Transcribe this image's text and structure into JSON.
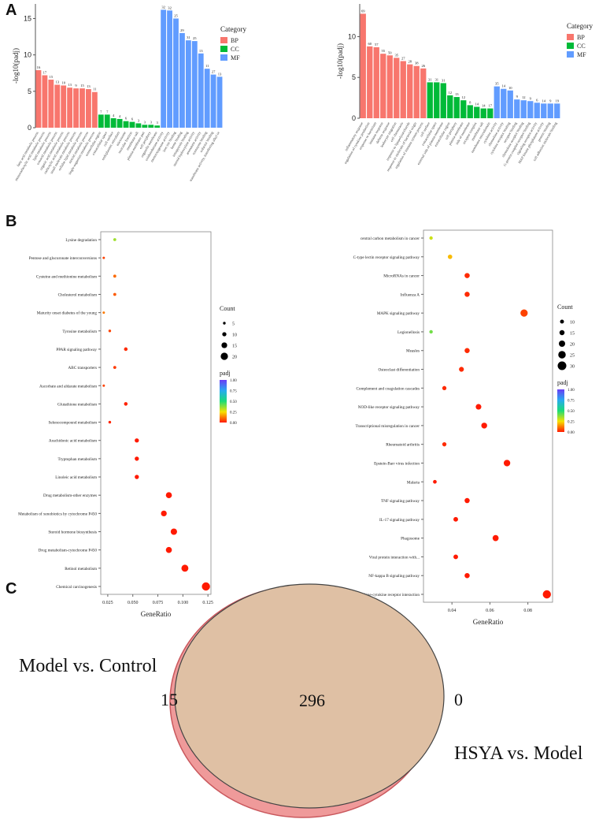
{
  "panels": {
    "a": "A",
    "b": "B",
    "c": "C"
  },
  "colors": {
    "bp": "#f8766d",
    "cc": "#00ba38",
    "mf": "#619cff",
    "venn_left_fill": "#ef9a9a",
    "venn_left_edge": "#c9585d",
    "venn_right_fill": "#dfc0a4",
    "venn_right_edge": "#444444",
    "dot_low": "#ff1a00",
    "dot_mid": "#f7e200",
    "dot_high": "#6a3df5"
  },
  "chart_data": [
    {
      "id": "go_left",
      "type": "bar",
      "ylabel": "-log10(padj)",
      "ylim": [
        0,
        17
      ],
      "yticks": [
        0,
        5,
        10,
        15
      ],
      "legend_title": "Category",
      "legend": [
        "BP",
        "CC",
        "MF"
      ],
      "categories": [
        "fatty acid metabolic process",
        "monocarboxylic acid metabolic process",
        "lipid metabolic process",
        "oxoacid metabolic process",
        "organic acid metabolic process",
        "carboxylic acid metabolic process",
        "small molecule metabolic process",
        "cellular lipid metabolic process",
        "steroid metabolic process",
        "single-organism metabolic process",
        "extracellular region",
        "extracellular space",
        "cell surface",
        "endoplasmic reticulum",
        "microsome",
        "vesicular fraction",
        "membrane raft",
        "plasma membrane part",
        "cell periphery",
        "organelle membrane",
        "oxidoreductase activity",
        "monooxygenase activity",
        "iron ion binding",
        "heme binding",
        "tetrapyrrole binding",
        "steroid hydroxylase activity",
        "aromatase activity",
        "coenzyme binding",
        "cofactor binding",
        "transferase activity, transferring alkyl or"
      ],
      "groups": [
        "BP",
        "BP",
        "BP",
        "BP",
        "BP",
        "BP",
        "BP",
        "BP",
        "BP",
        "BP",
        "CC",
        "CC",
        "CC",
        "CC",
        "CC",
        "CC",
        "CC",
        "CC",
        "CC",
        "CC",
        "MF",
        "MF",
        "MF",
        "MF",
        "MF",
        "MF",
        "MF",
        "MF",
        "MF",
        "MF"
      ],
      "values": [
        7.9,
        7.2,
        6.6,
        5.9,
        5.8,
        5.5,
        5.4,
        5.4,
        5.3,
        4.9,
        1.8,
        1.8,
        1.3,
        1.2,
        0.9,
        0.8,
        0.6,
        0.4,
        0.4,
        0.3,
        16.2,
        16.1,
        15.0,
        13.0,
        12.0,
        11.9,
        10.2,
        8.1,
        7.3,
        7.0
      ],
      "data_labels": [
        "16",
        "17",
        "15",
        "13",
        "10",
        "13",
        "9",
        "15",
        "13",
        "11",
        "7",
        "7",
        "4",
        "4",
        "6",
        "6",
        "3",
        "3",
        "3",
        "3",
        "32",
        "32",
        "25",
        "29",
        "31",
        "25",
        "13",
        "11",
        "27",
        "13"
      ]
    },
    {
      "id": "go_right",
      "type": "bar",
      "ylabel": "-log10(padj)",
      "ylim": [
        0,
        14
      ],
      "yticks": [
        0,
        5,
        10
      ],
      "legend_title": "Category",
      "legend": [
        "BP",
        "CC",
        "MF"
      ],
      "categories": [
        "inflammatory response",
        "regulation of cytokine production",
        "response to bacterium",
        "immune response",
        "defense response",
        "leukocyte migration",
        "cell chemotaxis",
        "response to lipopolysaccharide",
        "response to molecule of bacterial origin",
        "regulation of immune system process",
        "cell surface",
        "extracellular space",
        "external side of plasma membrane",
        "extracellular region",
        "cell periphery",
        "plasma membrane",
        "side of membrane",
        "receptor complex",
        "membrane raft",
        "membrane microdomain",
        "cytokine activity",
        "chemokine activity",
        "cytokine receptor binding",
        "receptor binding",
        "chemokine receptor binding",
        "G-protein coupled receptor binding",
        "signaling receptor activity",
        "MAP kinase phosphatase activity",
        "protein binding",
        "cell adhesion molecule binding"
      ],
      "groups": [
        "BP",
        "BP",
        "BP",
        "BP",
        "BP",
        "BP",
        "BP",
        "BP",
        "BP",
        "BP",
        "CC",
        "CC",
        "CC",
        "CC",
        "CC",
        "CC",
        "CC",
        "CC",
        "CC",
        "CC",
        "MF",
        "MF",
        "MF",
        "MF",
        "MF",
        "MF",
        "MF",
        "MF",
        "MF",
        "MF"
      ],
      "values": [
        12.8,
        8.8,
        8.7,
        7.9,
        7.7,
        7.4,
        7.0,
        6.6,
        6.4,
        6.1,
        4.4,
        4.4,
        4.3,
        2.8,
        2.6,
        2.2,
        1.6,
        1.4,
        1.2,
        1.2,
        3.9,
        3.6,
        3.4,
        2.3,
        2.2,
        2.1,
        1.9,
        1.8,
        1.8,
        1.8
      ],
      "data_labels": [
        "69",
        "60",
        "57",
        "55",
        "50",
        "35",
        "27",
        "28",
        "38",
        "26",
        "31",
        "31",
        "31",
        "12",
        "13",
        "12",
        "8",
        "14",
        "14",
        "17",
        "35",
        "14",
        "10",
        "9",
        "12",
        "9",
        "6",
        "14",
        "9",
        "19"
      ]
    },
    {
      "id": "kegg_left",
      "type": "scatter",
      "xlabel": "GeneRatio",
      "xlim": [
        0.018,
        0.128
      ],
      "xticks": [
        0.025,
        0.05,
        0.075,
        0.1,
        0.125
      ],
      "xtick_labels": [
        "0.025",
        "0.050",
        "0.075",
        "0.100",
        "0.125"
      ],
      "size_legend_title": "Count",
      "size_legend": [
        5,
        10,
        15,
        20
      ],
      "color_legend_title": "padj",
      "color_ticks": [
        "1.00",
        "0.75",
        "0.50",
        "0.25",
        "0.00"
      ],
      "pathways": [
        "Lysine degradation",
        "Pentose and glucuronate interconversions",
        "Cysteine and methionine metabolism",
        "Cholesterol metabolism",
        "Maturity onset diabetes of the young",
        "Tyrosine metabolism",
        "PPAR signaling pathway",
        "ABC transporters",
        "Ascorbate and aldarate metabolism",
        "Glutathione metabolism",
        "Selenocompound metabolism",
        "Arachidonic acid metabolism",
        "Tryptophan metabolism",
        "Linoleic acid metabolism",
        "Drug metabolism-other enzymes",
        "Metabolism of xenobiotics by cytochrome P450",
        "Steroid hormone biosynthesis",
        "Drug metabolism-cytochrome P450",
        "Retinol metabolism",
        "Chemical carcinogenesis"
      ],
      "gene_ratio": [
        0.032,
        0.021,
        0.032,
        0.032,
        0.021,
        0.027,
        0.043,
        0.032,
        0.021,
        0.043,
        0.027,
        0.054,
        0.054,
        0.054,
        0.086,
        0.081,
        0.091,
        0.086,
        0.102,
        0.123
      ],
      "count": [
        6,
        4,
        6,
        6,
        4,
        5,
        8,
        6,
        4,
        8,
        5,
        10,
        10,
        10,
        16,
        15,
        17,
        16,
        19,
        23
      ],
      "padj": [
        0.35,
        0.05,
        0.1,
        0.08,
        0.12,
        0.05,
        0.02,
        0.04,
        0.05,
        0.01,
        0.01,
        0.0,
        0.0,
        0.0,
        0.0,
        0.0,
        0.0,
        0.0,
        0.0,
        0.0
      ]
    },
    {
      "id": "kegg_right",
      "type": "scatter",
      "xlabel": "GeneRatio",
      "xlim": [
        0.025,
        0.093
      ],
      "xticks": [
        0.04,
        0.06,
        0.08
      ],
      "xtick_labels": [
        "0.04",
        "0.06",
        "0.08"
      ],
      "size_legend_title": "Count",
      "size_legend": [
        10,
        15,
        20,
        25,
        30
      ],
      "color_legend_title": "padj",
      "color_ticks": [
        "1.00",
        "0.75",
        "0.50",
        "0.25",
        "0.00"
      ],
      "pathways": [
        "central carbon metabolism in cancer",
        "C-type lectin receptor signaling pathway",
        "MicroRNAs in cancer",
        "Influenza A",
        "MAPK signaling pathway",
        "Legionellosis",
        "Measles",
        "Osteoclast differentiation",
        "Complement and coagulation cascades",
        "NOD-like receptor signaling pathway",
        "Transcriptional misregulation in cancer",
        "Rheumatoid arthritis",
        "Epstein-Barr virus infection",
        "Malaria",
        "TNF signaling pathway",
        "IL-17 signaling pathway",
        "Phagosome",
        "Viral protein interaction with...",
        "NF-kappa B signaling pathway",
        "Cytokine-cytokine receptor interaction"
      ],
      "gene_ratio": [
        0.029,
        0.039,
        0.048,
        0.048,
        0.078,
        0.029,
        0.048,
        0.045,
        0.036,
        0.054,
        0.057,
        0.036,
        0.069,
        0.031,
        0.048,
        0.042,
        0.063,
        0.042,
        0.048,
        0.09
      ],
      "count": [
        8,
        12,
        15,
        15,
        24,
        8,
        15,
        14,
        11,
        17,
        18,
        11,
        21,
        9,
        15,
        13,
        19,
        13,
        15,
        28
      ],
      "padj": [
        0.3,
        0.2,
        0.02,
        0.02,
        0.05,
        0.4,
        0.02,
        0.02,
        0.02,
        0.0,
        0.0,
        0.02,
        0.0,
        0.0,
        0.0,
        0.0,
        0.0,
        0.0,
        0.0,
        0.0
      ]
    },
    {
      "id": "venn",
      "type": "venn",
      "sets": [
        "Model vs. Control",
        "HSYA vs. Model"
      ],
      "only_left": 15,
      "intersection": 296,
      "only_right": 0
    }
  ]
}
